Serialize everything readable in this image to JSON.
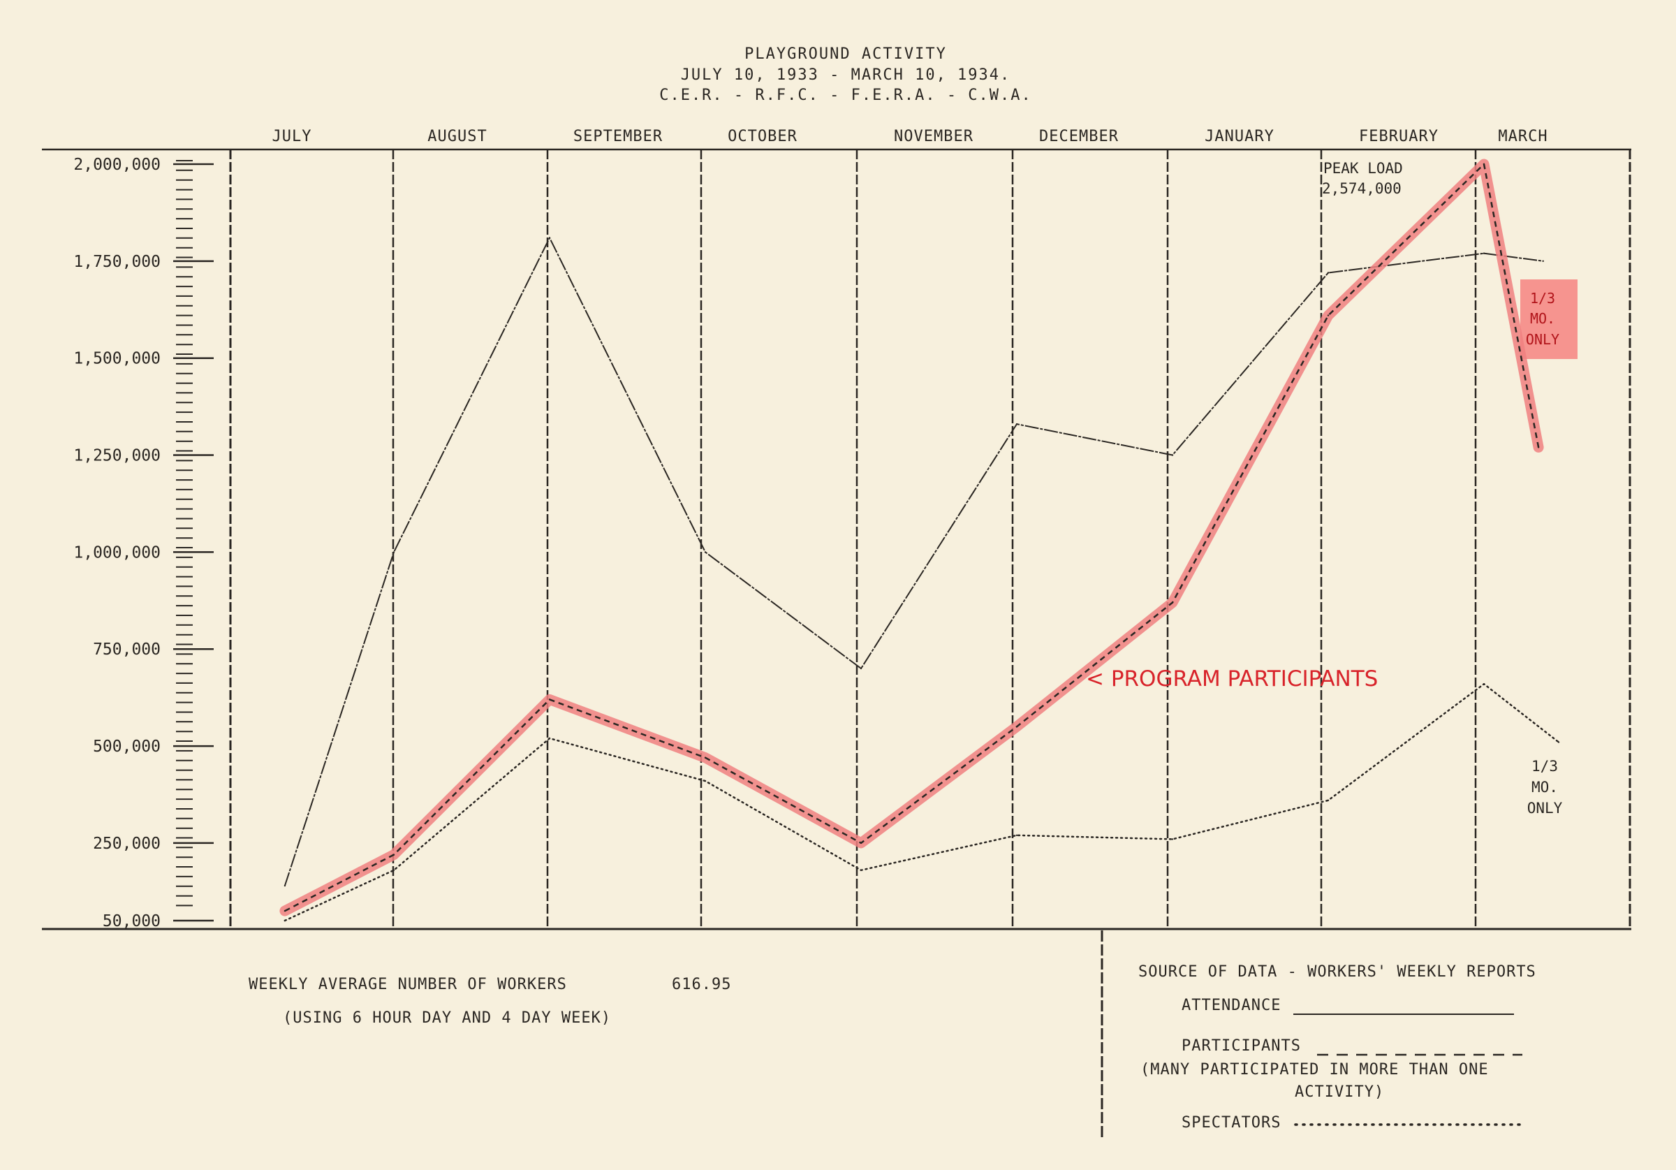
{
  "title": {
    "line1": "PLAYGROUND ACTIVITY",
    "line2": "JULY 10, 1933 - MARCH 10, 1934.",
    "line3": "C.E.R. - R.F.C. - F.E.R.A. - C.W.A."
  },
  "footer": {
    "workers_label": "WEEKLY AVERAGE NUMBER OF WORKERS",
    "workers_value": "616.95",
    "workers_note": "(USING 6 HOUR DAY AND 4 DAY WEEK)",
    "source": "SOURCE OF DATA - WORKERS' WEEKLY REPORTS",
    "legend_attendance": "ATTENDANCE",
    "legend_participants": "PARTICIPANTS",
    "legend_participants_note_1": "(MANY PARTICIPATED IN MORE THAN ONE",
    "legend_participants_note_2": "ACTIVITY)",
    "legend_spectators": "SPECTATORS"
  },
  "annotations": {
    "peak_1": "PEAK LOAD",
    "peak_2": "2,574,000",
    "red_note_1": "1/3",
    "red_note_2": "MO.",
    "red_note_3": "ONLY",
    "spect_note_1": "1/3",
    "spect_note_2": "MO.",
    "spect_note_3": "ONLY",
    "program_label": "< PROGRAM PARTICIPANTS"
  },
  "colors": {
    "paper": "#f7f0dd",
    "ink": "#2a2622",
    "highlight": "#f08080",
    "red_text": "#d8232a",
    "red_box": "#f58a86"
  },
  "chart_data": {
    "type": "line",
    "categories": [
      "JULY",
      "AUGUST",
      "SEPTEMBER",
      "OCTOBER",
      "NOVEMBER",
      "DECEMBER",
      "JANUARY",
      "FEBRUARY",
      "MARCH"
    ],
    "y_ticks": [
      {
        "value": 50000,
        "label": "50,000"
      },
      {
        "value": 250000,
        "label": "250,000"
      },
      {
        "value": 500000,
        "label": "500,000"
      },
      {
        "value": 750000,
        "label": "750,000"
      },
      {
        "value": 1000000,
        "label": "1,000,000"
      },
      {
        "value": 1250000,
        "label": "1,250,000"
      },
      {
        "value": 1500000,
        "label": "1,500,000"
      },
      {
        "value": 1750000,
        "label": "1,750,000"
      },
      {
        "value": 2000000,
        "label": "2,000,000"
      }
    ],
    "ylim": [
      50000,
      2000000
    ],
    "series": [
      {
        "name": "ATTENDANCE",
        "style": "solid",
        "x": [
          0.3,
          1.0,
          2.0,
          3.0,
          4.0,
          5.0,
          6.0,
          7.0,
          8.0,
          8.38
        ],
        "values": [
          140000,
          1000000,
          1810000,
          1000000,
          700000,
          1330000,
          1250000,
          1720000,
          1770000,
          1750000
        ]
      },
      {
        "name": "PARTICIPANTS",
        "style": "dashed",
        "x": [
          0.3,
          1.0,
          2.0,
          3.0,
          4.0,
          5.0,
          6.0,
          7.0,
          8.0,
          8.35
        ],
        "values": [
          75000,
          220000,
          620000,
          470000,
          250000,
          550000,
          870000,
          1610000,
          2000000,
          1270000
        ]
      },
      {
        "name": "SPECTATORS",
        "style": "dotted",
        "x": [
          0.3,
          1.0,
          2.0,
          3.0,
          4.0,
          5.0,
          6.0,
          7.0,
          8.0,
          8.48
        ],
        "values": [
          50000,
          180000,
          520000,
          410000,
          180000,
          270000,
          260000,
          360000,
          660000,
          510000
        ]
      }
    ]
  }
}
